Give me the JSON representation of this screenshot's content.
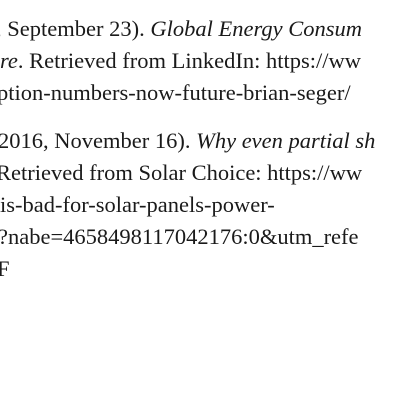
{
  "references": [
    {
      "lines": [
        {
          "segments": [
            {
              "text": ", September 23). ",
              "italic": false
            },
            {
              "text": "Global Energy Consum",
              "italic": true
            }
          ]
        },
        {
          "segments": [
            {
              "text": "re",
              "italic": true
            },
            {
              "text": ". Retrieved from LinkedIn: https://ww",
              "italic": false
            }
          ]
        },
        {
          "segments": [
            {
              "text": "ption-numbers-now-future-brian-seger/",
              "italic": false
            }
          ]
        }
      ]
    },
    {
      "lines": [
        {
          "segments": [
            {
              "text": "2016, November 16). ",
              "italic": false
            },
            {
              "text": "Why even partial sh",
              "italic": true
            }
          ]
        },
        {
          "segments": [
            {
              "text": " Retrieved from Solar Choice: https://ww",
              "italic": false
            }
          ]
        },
        {
          "segments": [
            {
              "text": "is-bad-for-solar-panels-power-",
              "italic": false
            }
          ]
        },
        {
          "segments": [
            {
              "text": "?nabe=4658498117042176:0&utm_refe",
              "italic": false
            }
          ]
        },
        {
          "segments": [
            {
              "text": "F",
              "italic": false
            }
          ]
        }
      ]
    }
  ]
}
